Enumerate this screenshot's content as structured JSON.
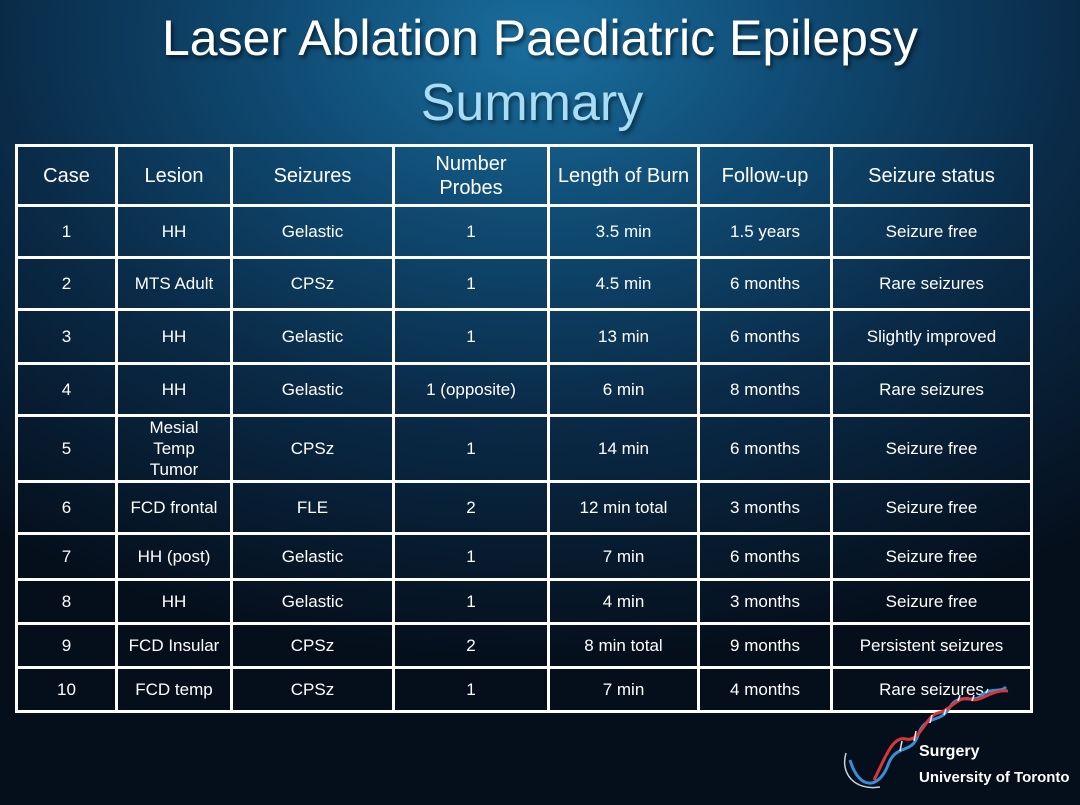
{
  "title": "Laser Ablation Paediatric Epilepsy",
  "subtitle": "Summary",
  "table": {
    "headers": [
      "Case",
      "Lesion",
      "Seizures",
      "Number Probes",
      "Length of Burn",
      "Follow-up",
      "Seizure status"
    ],
    "rows": [
      [
        "1",
        "HH",
        "Gelastic",
        "1",
        "3.5 min",
        "1.5 years",
        "Seizure free"
      ],
      [
        "2",
        "MTS Adult",
        "CPSz",
        "1",
        "4.5 min",
        "6 months",
        "Rare seizures"
      ],
      [
        "3",
        "HH",
        "Gelastic",
        "1",
        "13 min",
        "6 months",
        "Slightly improved"
      ],
      [
        "4",
        "HH",
        "Gelastic",
        "1 (opposite)",
        "6 min",
        "8 months",
        "Rare seizures"
      ],
      [
        "5",
        "Mesial Temp Tumor",
        "CPSz",
        "1",
        "14 min",
        "6 months",
        "Seizure free"
      ],
      [
        "6",
        "FCD frontal",
        "FLE",
        "2",
        "12 min total",
        "3 months",
        "Seizure free"
      ],
      [
        "7",
        "HH (post)",
        "Gelastic",
        "1",
        "7 min",
        "6 months",
        "Seizure free"
      ],
      [
        "8",
        "HH",
        "Gelastic",
        "1",
        "4 min",
        "3 months",
        "Seizure free"
      ],
      [
        "9",
        "FCD Insular",
        "CPSz",
        "2",
        "8 min total",
        "9 months",
        "Persistent seizures"
      ],
      [
        "10",
        "FCD temp",
        "CPSz",
        "1",
        "7 min",
        "4 months",
        "Rare seizures"
      ]
    ]
  },
  "logo": {
    "line1": "Surgery",
    "line2": "University of Toronto",
    "icon": "dna-helix-icon"
  },
  "colors": {
    "title": "#ffffff",
    "subtitle": "#a9dcf5",
    "table_border": "#ffffff",
    "helix_red": "#d9363a",
    "helix_blue": "#3a8fd4"
  }
}
